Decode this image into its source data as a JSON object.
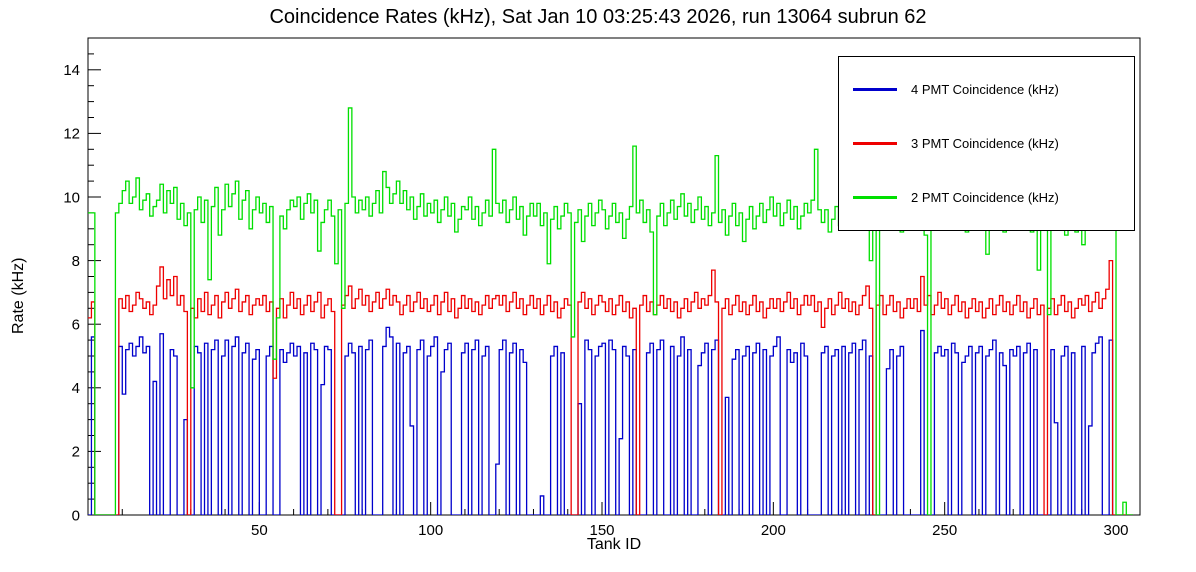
{
  "chart_data": {
    "type": "line",
    "subtype": "step-histogram",
    "title": "Coincidence Rates (kHz), Sat Jan 10 03:25:43 2026, run 13064 subrun 62",
    "xlabel": "Tank ID",
    "ylabel": "Rate (kHz)",
    "xlim": [
      0,
      307
    ],
    "ylim": [
      0,
      15
    ],
    "x_ticks": [
      50,
      100,
      150,
      200,
      250,
      300
    ],
    "y_ticks": [
      0,
      2,
      4,
      6,
      8,
      10,
      12,
      14
    ],
    "x_minor_step": 10,
    "y_minor_step": 0.5,
    "grid": false,
    "legend_position": "top-right",
    "bin_width": 1,
    "x_bins": {
      "start": 1,
      "end": 305
    },
    "series": [
      {
        "id": "4pmt",
        "name": "4 PMT Coincidence (kHz)",
        "color": "#0000cc",
        "values": [
          0,
          5.6,
          0,
          0,
          0,
          0,
          0,
          0,
          0,
          5.3,
          3.8,
          5.2,
          5.4,
          5.0,
          5.3,
          5.6,
          5.1,
          5.3,
          0,
          4.2,
          0,
          5.7,
          0,
          0,
          5.2,
          5.0,
          0,
          0,
          3.0,
          0,
          0,
          5.3,
          5.1,
          0,
          5.4,
          0,
          5.2,
          5.5,
          0,
          5.0,
          5.5,
          0,
          5.3,
          5.6,
          0,
          5.1,
          5.4,
          0,
          4.9,
          5.2,
          0,
          0,
          5.0,
          5.3,
          0,
          0,
          5.2,
          4.8,
          5.1,
          5.4,
          5.0,
          5.3,
          0,
          5.1,
          0,
          5.4,
          5.2,
          0,
          4.1,
          5.3,
          5.2,
          0,
          0,
          0,
          0,
          5.0,
          5.4,
          5.1,
          0,
          5.3,
          0,
          5.2,
          5.5,
          0,
          0,
          0,
          5.3,
          5.9,
          5.6,
          0,
          5.4,
          0,
          5.1,
          5.3,
          2.8,
          0,
          5.2,
          5.5,
          0,
          5.0,
          5.3,
          5.6,
          0,
          4.5,
          5.2,
          5.4,
          0,
          0,
          0,
          5.1,
          5.4,
          0,
          5.2,
          5.5,
          0,
          5.0,
          5.3,
          0,
          0,
          1.6,
          5.2,
          5.5,
          0,
          5.1,
          5.4,
          0,
          5.2,
          4.8,
          0,
          0,
          0,
          0,
          0.6,
          0,
          0,
          5.0,
          5.3,
          0,
          5.1,
          0,
          0,
          0,
          0,
          3.5,
          0,
          5.5,
          5.2,
          0,
          5.0,
          5.3,
          5.4,
          0,
          5.5,
          5.2,
          0,
          2.4,
          5.3,
          5.0,
          0,
          5.2,
          0,
          0,
          0,
          5.1,
          5.4,
          0,
          5.2,
          5.5,
          0,
          0,
          5.3,
          0,
          5.0,
          5.6,
          0,
          5.2,
          0,
          0,
          4.7,
          5.1,
          5.4,
          0,
          5.2,
          5.5,
          0,
          0,
          3.7,
          0,
          4.9,
          5.2,
          0,
          5.0,
          5.3,
          0,
          5.1,
          5.4,
          0,
          5.2,
          0,
          5.0,
          5.3,
          5.6,
          0,
          0,
          5.2,
          4.8,
          5.1,
          0,
          5.4,
          5.0,
          0,
          0,
          0,
          0,
          5.1,
          5.3,
          0,
          5.0,
          5.2,
          0,
          5.3,
          0,
          5.1,
          5.4,
          0,
          5.2,
          5.5,
          0,
          5.0,
          0,
          0,
          0,
          0,
          4.6,
          5.2,
          0,
          5.0,
          5.3,
          0,
          0,
          0,
          0,
          0,
          5.8,
          0,
          0,
          0,
          5.1,
          5.3,
          5.0,
          5.2,
          0,
          5.4,
          5.1,
          0,
          4.8,
          5.0,
          5.3,
          0,
          5.1,
          5.3,
          0,
          5.0,
          5.2,
          5.5,
          0,
          5.1,
          4.7,
          0,
          5.2,
          5.0,
          5.3,
          0,
          5.1,
          5.4,
          0,
          5.2,
          0,
          0,
          0,
          0,
          5.2,
          2.9,
          0,
          5.0,
          5.3,
          0,
          5.1,
          0,
          0,
          5.3,
          0,
          2.8,
          5.1,
          5.4,
          5.6,
          0,
          0,
          5.5,
          0,
          0,
          0,
          0,
          0,
          0
        ]
      },
      {
        "id": "3pmt",
        "name": "3 PMT Coincidence (kHz)",
        "color": "#ee0000",
        "values": [
          6.2,
          6.7,
          0,
          0,
          0,
          0,
          0,
          0,
          0,
          6.8,
          6.5,
          6.9,
          6.4,
          6.6,
          7.0,
          6.8,
          6.5,
          6.7,
          6.3,
          6.6,
          7.2,
          7.8,
          6.8,
          7.4,
          6.9,
          7.5,
          6.6,
          6.9,
          6.4,
          0,
          6.5,
          6.2,
          6.8,
          6.4,
          7.0,
          6.3,
          6.6,
          6.9,
          6.2,
          6.7,
          7.0,
          6.5,
          6.8,
          7.1,
          6.4,
          6.7,
          6.9,
          6.3,
          6.6,
          6.8,
          6.6,
          6.9,
          6.4,
          6.7,
          4.3,
          6.5,
          6.8,
          6.2,
          6.6,
          7.0,
          6.5,
          6.8,
          6.3,
          6.6,
          6.9,
          6.4,
          6.7,
          7.0,
          6.2,
          6.6,
          6.8,
          6.4,
          0,
          0,
          6.6,
          6.9,
          7.2,
          6.5,
          6.8,
          7.1,
          6.6,
          6.9,
          6.4,
          6.7,
          7.0,
          6.5,
          6.8,
          7.1,
          6.6,
          6.9,
          6.7,
          6.3,
          6.6,
          6.9,
          6.4,
          6.7,
          7.0,
          6.5,
          6.8,
          6.4,
          6.6,
          6.9,
          6.3,
          6.7,
          7.0,
          6.4,
          6.8,
          6.2,
          6.5,
          6.9,
          6.5,
          6.8,
          6.4,
          6.7,
          6.3,
          6.6,
          6.9,
          6.5,
          6.8,
          6.9,
          6.6,
          6.9,
          6.4,
          6.7,
          7.0,
          6.5,
          6.8,
          6.3,
          6.6,
          6.9,
          6.5,
          6.8,
          6.3,
          6.6,
          6.9,
          6.4,
          6.7,
          6.2,
          6.5,
          6.8,
          6.6,
          0,
          0,
          6.7,
          7.0,
          6.5,
          6.8,
          6.3,
          6.6,
          6.9,
          6.7,
          6.4,
          6.8,
          6.3,
          6.6,
          6.9,
          6.4,
          6.7,
          6.2,
          6.5,
          0,
          6.6,
          6.9,
          6.4,
          6.7,
          6.3,
          6.6,
          6.9,
          6.5,
          6.8,
          6.4,
          6.7,
          6.2,
          6.5,
          6.8,
          6.4,
          6.7,
          7.0,
          6.5,
          6.8,
          6.6,
          6.9,
          7.7,
          6.7,
          0,
          6.5,
          6.8,
          6.3,
          6.6,
          6.9,
          6.4,
          6.7,
          6.3,
          6.6,
          6.9,
          6.4,
          6.7,
          6.2,
          6.5,
          6.8,
          6.5,
          6.8,
          6.4,
          6.7,
          7.0,
          6.5,
          6.8,
          6.3,
          6.6,
          6.9,
          6.6,
          6.9,
          6.4,
          6.7,
          5.9,
          6.5,
          6.8,
          6.3,
          6.6,
          7.0,
          6.5,
          6.8,
          6.4,
          6.7,
          6.3,
          6.6,
          6.9,
          7.2,
          6.5,
          0,
          6.6,
          6.9,
          6.3,
          6.6,
          6.9,
          6.4,
          6.7,
          6.2,
          6.5,
          6.8,
          6.5,
          6.8,
          6.4,
          7.5,
          6.6,
          6.9,
          6.3,
          6.6,
          7.0,
          6.5,
          6.8,
          6.3,
          6.6,
          6.9,
          6.4,
          6.7,
          6.2,
          6.5,
          6.8,
          6.4,
          6.7,
          6.2,
          6.5,
          6.8,
          6.3,
          6.6,
          6.9,
          6.4,
          6.7,
          6.3,
          6.6,
          6.9,
          6.4,
          6.7,
          6.2,
          6.5,
          6.8,
          6.3,
          6.6,
          0,
          6.5,
          6.8,
          6.3,
          6.6,
          6.9,
          6.4,
          6.7,
          6.2,
          6.5,
          6.8,
          6.6,
          6.9,
          6.4,
          6.7,
          7.0,
          6.5,
          6.8,
          7.1,
          8.0,
          0,
          0,
          0,
          0,
          0,
          0
        ]
      },
      {
        "id": "2pmt",
        "name": "2 PMT Coincidence (kHz)",
        "color": "#00df00",
        "values": [
          9.5,
          9.5,
          0,
          0,
          0,
          0,
          0,
          0,
          9.5,
          9.8,
          10.2,
          10.5,
          9.8,
          10.0,
          10.6,
          9.6,
          9.9,
          10.1,
          9.4,
          9.7,
          9.9,
          10.4,
          9.5,
          10.2,
          9.8,
          10.3,
          9.3,
          9.8,
          9.1,
          9.5,
          4.0,
          9.6,
          10.0,
          9.2,
          9.9,
          7.4,
          9.7,
          10.3,
          8.8,
          9.6,
          10.4,
          9.7,
          10.1,
          10.5,
          9.3,
          9.9,
          10.2,
          9.0,
          9.6,
          10.0,
          9.5,
          9.8,
          9.2,
          9.7,
          4.9,
          6.2,
          9.4,
          9.0,
          9.6,
          9.9,
          9.7,
          10.0,
          9.3,
          9.8,
          10.1,
          9.5,
          9.9,
          8.3,
          9.2,
          9.6,
          9.9,
          9.4,
          7.9,
          9.6,
          6.5,
          9.8,
          12.8,
          10.0,
          9.5,
          9.9,
          9.6,
          10.0,
          9.4,
          9.8,
          10.2,
          9.5,
          10.8,
          10.3,
          9.8,
          10.1,
          10.5,
          9.8,
          10.2,
          9.6,
          10.0,
          9.3,
          9.7,
          10.1,
          9.4,
          9.8,
          9.5,
          9.9,
          9.2,
          9.6,
          10.0,
          9.4,
          9.8,
          8.9,
          9.3,
          9.7,
          9.6,
          10.0,
          9.3,
          9.7,
          9.1,
          9.5,
          9.9,
          9.4,
          11.5,
          9.8,
          9.5,
          9.9,
          9.2,
          9.6,
          10.0,
          9.3,
          9.7,
          8.8,
          9.4,
          9.8,
          9.4,
          9.8,
          9.1,
          9.5,
          7.9,
          9.3,
          9.7,
          9.0,
          9.4,
          9.8,
          9.5,
          5.6,
          9.2,
          9.6,
          8.6,
          9.4,
          9.8,
          9.1,
          9.5,
          9.9,
          9.6,
          9.0,
          9.4,
          9.8,
          9.2,
          9.5,
          8.7,
          9.3,
          9.7,
          11.6,
          9.5,
          9.9,
          9.2,
          9.6,
          8.9,
          6.3,
          9.4,
          9.8,
          9.1,
          9.5,
          9.9,
          9.3,
          9.7,
          10.1,
          9.4,
          9.8,
          9.2,
          9.6,
          10.0,
          9.3,
          9.7,
          9.1,
          9.5,
          11.3,
          9.2,
          9.6,
          8.8,
          9.4,
          9.8,
          9.1,
          9.5,
          8.6,
          9.3,
          9.7,
          9.0,
          9.4,
          9.8,
          9.2,
          9.6,
          10.0,
          9.4,
          9.8,
          9.1,
          9.5,
          9.9,
          9.3,
          9.7,
          9.0,
          9.4,
          9.8,
          9.5,
          9.9,
          11.5,
          9.6,
          9.2,
          9.6,
          8.9,
          9.3,
          9.7,
          9.1,
          9.5,
          9.9,
          9.2,
          9.6,
          10.0,
          9.3,
          9.7,
          9.0,
          8.0,
          9.4,
          0,
          9.8,
          9.1,
          9.5,
          9.9,
          9.2,
          9.6,
          8.9,
          9.3,
          9.7,
          9.4,
          9.8,
          9.1,
          9.5,
          8.8,
          0,
          9.2,
          9.6,
          9.0,
          9.4,
          9.8,
          9.1,
          9.5,
          9.9,
          9.2,
          9.6,
          8.9,
          9.3,
          9.7,
          9.0,
          9.4,
          9.8,
          8.2,
          9.5,
          9.9,
          9.2,
          9.6,
          8.9,
          9.3,
          9.7,
          9.1,
          9.5,
          9.9,
          9.2,
          9.6,
          8.9,
          9.3,
          7.7,
          9.4,
          9.8,
          6.3,
          9.4,
          9.8,
          9.1,
          9.5,
          8.8,
          9.2,
          9.6,
          8.9,
          9.3,
          8.5,
          9.6,
          10.0,
          9.3,
          9.7,
          10.1,
          12.2,
          10.6,
          13.1,
          11.2,
          0,
          0,
          0.4,
          0,
          0
        ]
      }
    ]
  }
}
